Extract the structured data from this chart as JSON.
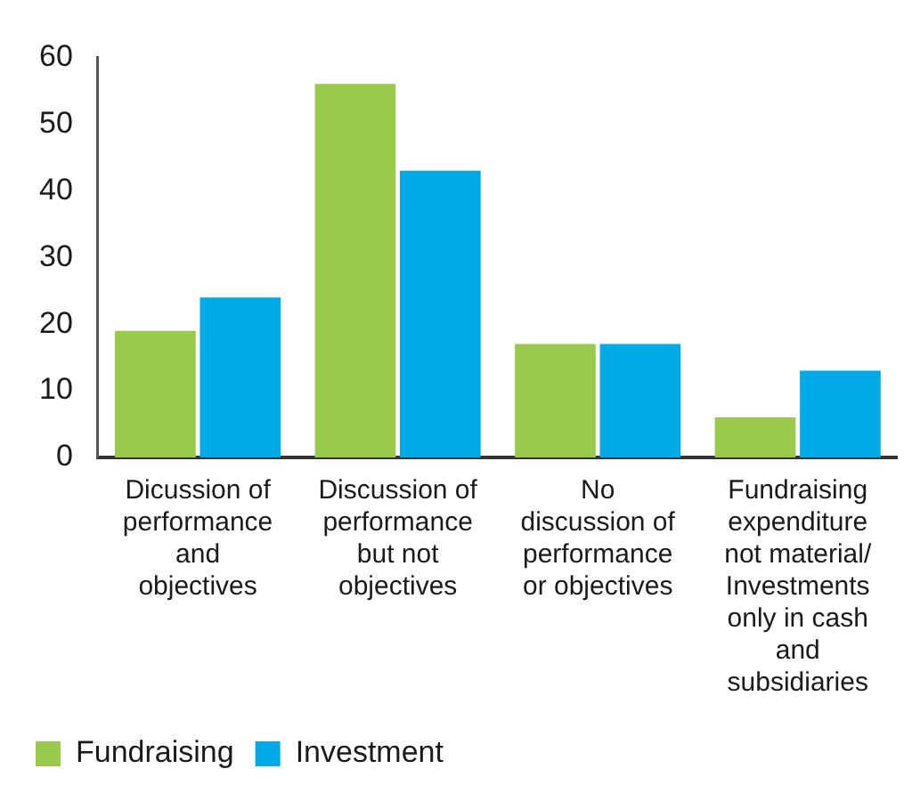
{
  "chart_data": {
    "type": "bar",
    "categories": [
      "Dicussion of performance and objectives",
      "Discussion of performance but not objectives",
      "No discussion of performance or objectives",
      "Fundraising expenditure not material/ Investments only in cash and subsidiaries"
    ],
    "series": [
      {
        "name": "Fundraising",
        "color": "#9aca4c",
        "values": [
          19,
          56,
          17,
          6
        ]
      },
      {
        "name": "Investment",
        "color": "#00aae6",
        "values": [
          24,
          43,
          17,
          13
        ]
      }
    ],
    "ylim": [
      0,
      60
    ],
    "yticks": [
      0,
      10,
      20,
      30,
      40,
      50,
      60
    ],
    "grid": false,
    "legend": "bottom left"
  }
}
